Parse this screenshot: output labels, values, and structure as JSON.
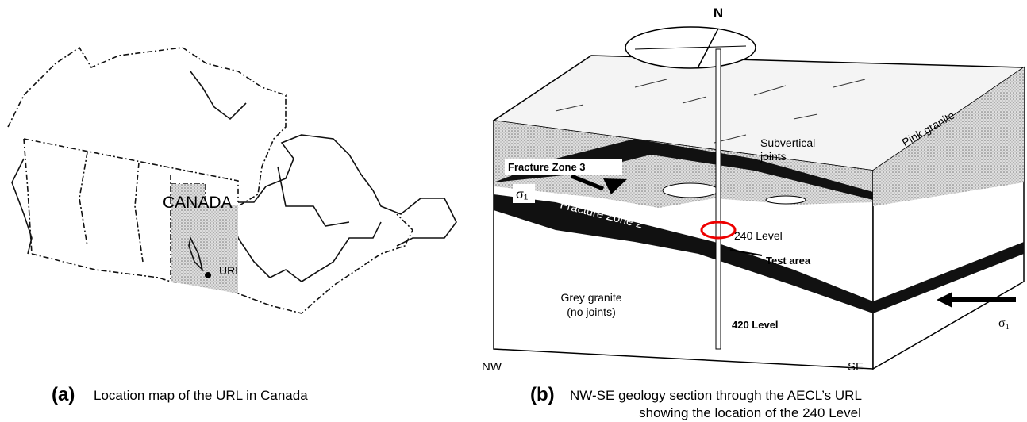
{
  "map": {
    "country_label": "CANADA",
    "site_label": "URL"
  },
  "diagram": {
    "north": "N",
    "subvertical_joints": [
      "Subvertical",
      "joints"
    ],
    "pink_granite": "Pink granite",
    "fracture_zone_3": "Fracture Zone 3",
    "sigma_left": "σ₁",
    "fracture_zone_2": "Fracture Zone 2",
    "level_240": "240 Level",
    "test_area": "Test area",
    "grey_granite": [
      "Grey granite",
      "(no joints)"
    ],
    "level_420": "420 Level",
    "sigma_right": "σ₁",
    "nw": "NW",
    "se": "SE"
  },
  "captions": {
    "a": {
      "letter": "(a)",
      "text": "Location map of the URL in Canada"
    },
    "b": {
      "letter": "(b)",
      "lines": [
        "NW-SE geology section through the AECL’s URL",
        "showing the location of the 240 Level"
      ]
    }
  }
}
